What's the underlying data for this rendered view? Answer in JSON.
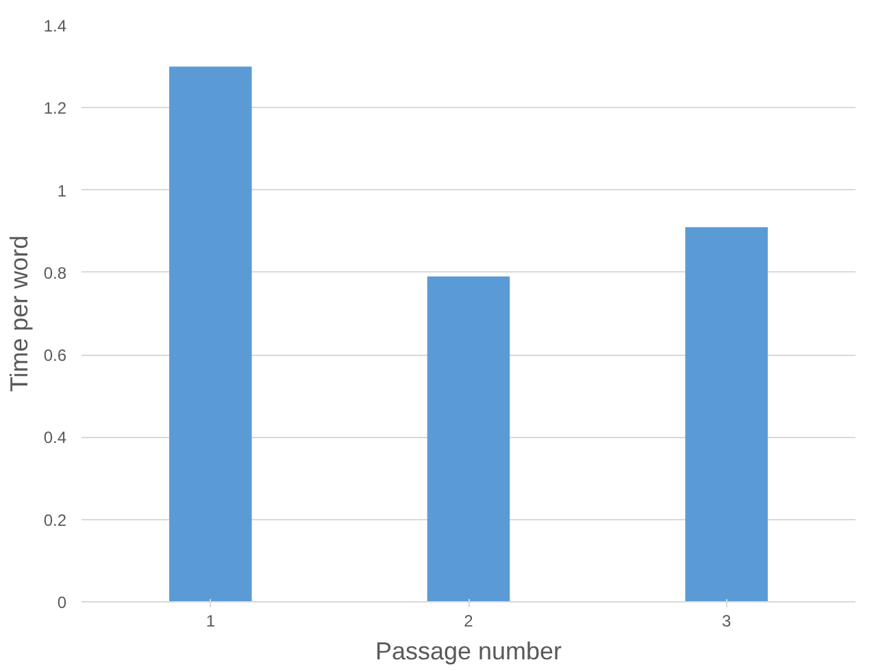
{
  "chart_data": {
    "type": "bar",
    "xlabel": "Passage number",
    "ylabel": "Time per word",
    "categories": [
      "1",
      "2",
      "3"
    ],
    "values": [
      1.3,
      0.79,
      0.91
    ],
    "color": "#5b9bd5",
    "ylim": [
      0,
      1.4
    ],
    "yticks": [
      0,
      0.2,
      0.4,
      0.6,
      0.8,
      1,
      1.2,
      1.4
    ],
    "grid": "y"
  }
}
